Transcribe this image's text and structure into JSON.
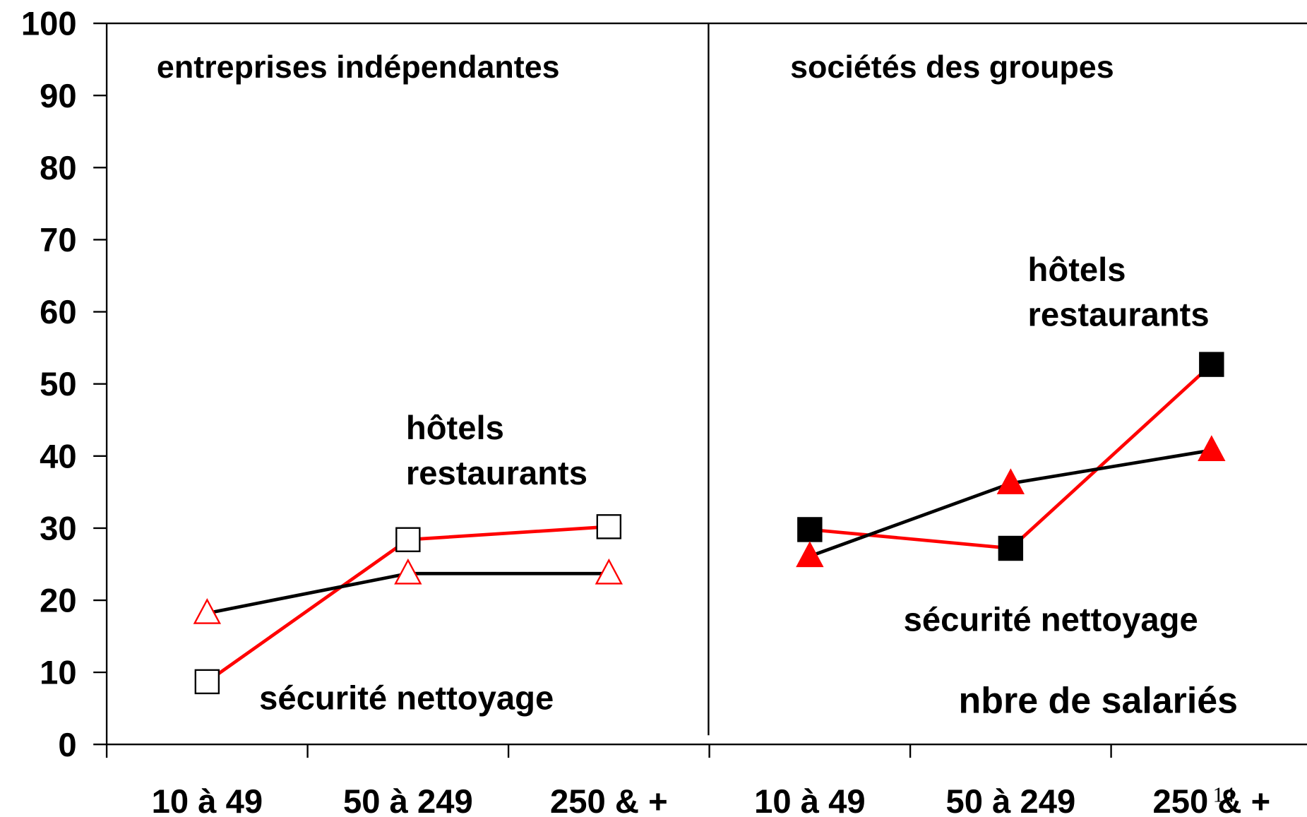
{
  "chart_data": {
    "type": "line",
    "categories": [
      "10 à 49",
      "50 à 249",
      "250 & +",
      "10 à 49",
      "50 à 249",
      "250 & +"
    ],
    "series": [
      {
        "color": "#ff0000",
        "marker": "square",
        "marker_fill": "#ffffff",
        "marker_stroke": "#000000",
        "values": [
          8.7,
          28.4,
          30.2,
          null,
          null,
          null
        ]
      },
      {
        "color": "#000000",
        "marker": "triangle",
        "marker_fill": "#ffffff",
        "marker_stroke": "#ff0000",
        "values": [
          18.2,
          23.7,
          23.7,
          null,
          null,
          null
        ]
      },
      {
        "color": "#ff0000",
        "marker": "square",
        "marker_fill": "#000000",
        "marker_stroke": "#000000",
        "values": [
          null,
          null,
          null,
          29.8,
          27.2,
          52.7
        ]
      },
      {
        "color": "#000000",
        "marker": "triangle",
        "marker_fill": "#ff0000",
        "marker_stroke": "#ff0000",
        "values": [
          null,
          null,
          null,
          26.1,
          36.2,
          40.8
        ]
      }
    ],
    "ylim": [
      0,
      100
    ],
    "yticks": [
      0,
      10,
      20,
      30,
      40,
      50,
      60,
      70,
      80,
      90,
      100
    ],
    "annotations": [
      "entreprises indépendantes",
      "sociétés des groupes",
      "hôtels",
      "restaurants",
      "sécurité nettoyage",
      "hôtels",
      "restaurants",
      "sécurité nettoyage",
      "nbre de salariés"
    ],
    "page_number": "14"
  }
}
